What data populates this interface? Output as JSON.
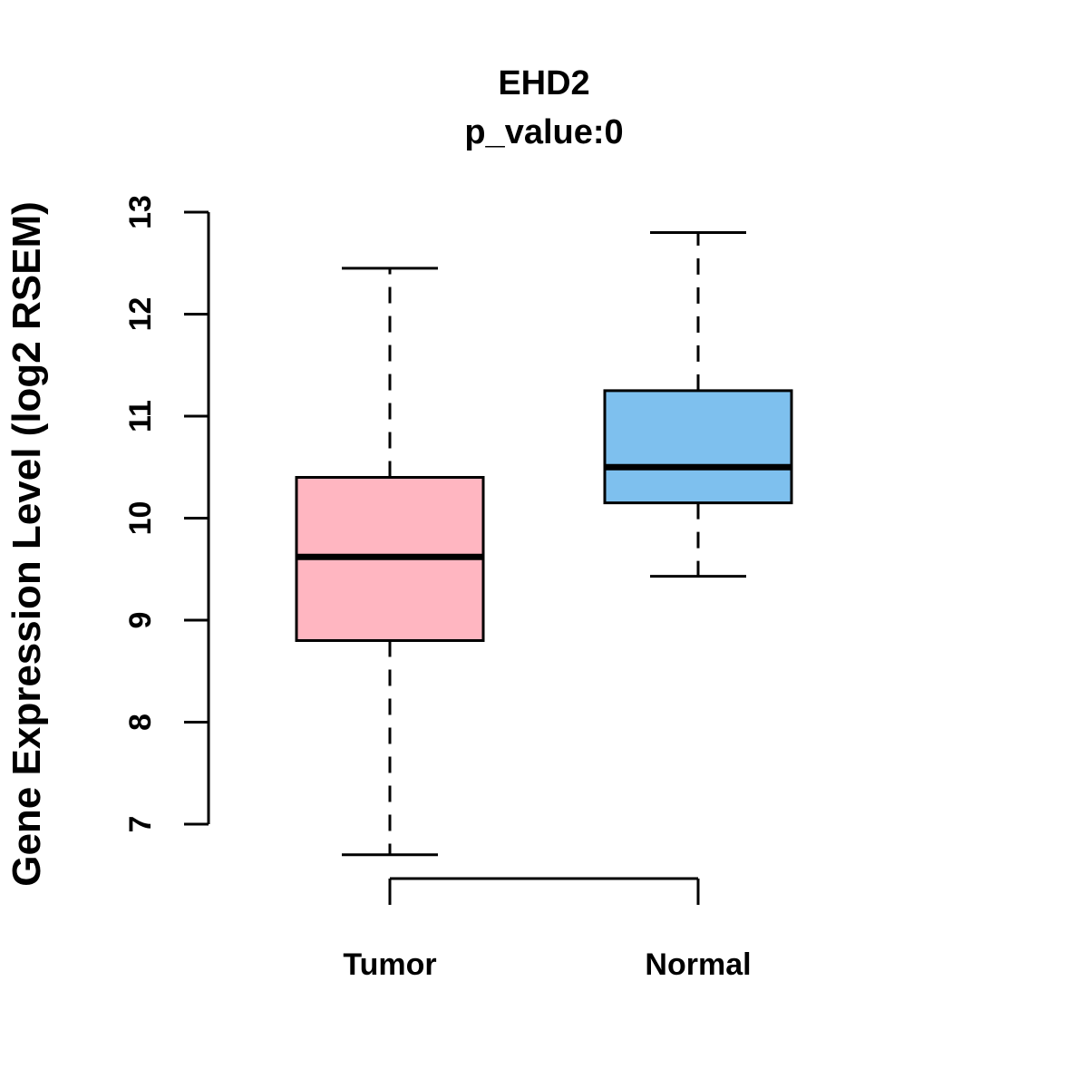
{
  "chart_data": {
    "type": "boxplot",
    "title": "EHD2",
    "subtitle": "p_value:0",
    "ylabel": "Gene Expression Level (log2 RSEM)",
    "xlabel": "",
    "ylim": [
      7,
      13
    ],
    "yticks": [
      7,
      8,
      9,
      10,
      11,
      12,
      13
    ],
    "grid": false,
    "legend": "none",
    "categories": [
      "Tumor",
      "Normal"
    ],
    "groups": [
      {
        "label": "Tumor",
        "color": "#FFB6C1",
        "whisker_low": 6.7,
        "q1": 8.8,
        "median": 9.62,
        "q3": 10.4,
        "whisker_high": 12.45
      },
      {
        "label": "Normal",
        "color": "#7EC0EE",
        "whisker_low": 9.43,
        "q1": 10.15,
        "median": 10.5,
        "q3": 11.25,
        "whisker_high": 12.8
      }
    ],
    "comparison_bracket": {
      "between": [
        "Tumor",
        "Normal"
      ]
    }
  },
  "colors": {
    "background": "#FFFFFF",
    "stroke": "#000000",
    "tumor_box": "#FFB6C1",
    "normal_box": "#7EC0EE"
  }
}
